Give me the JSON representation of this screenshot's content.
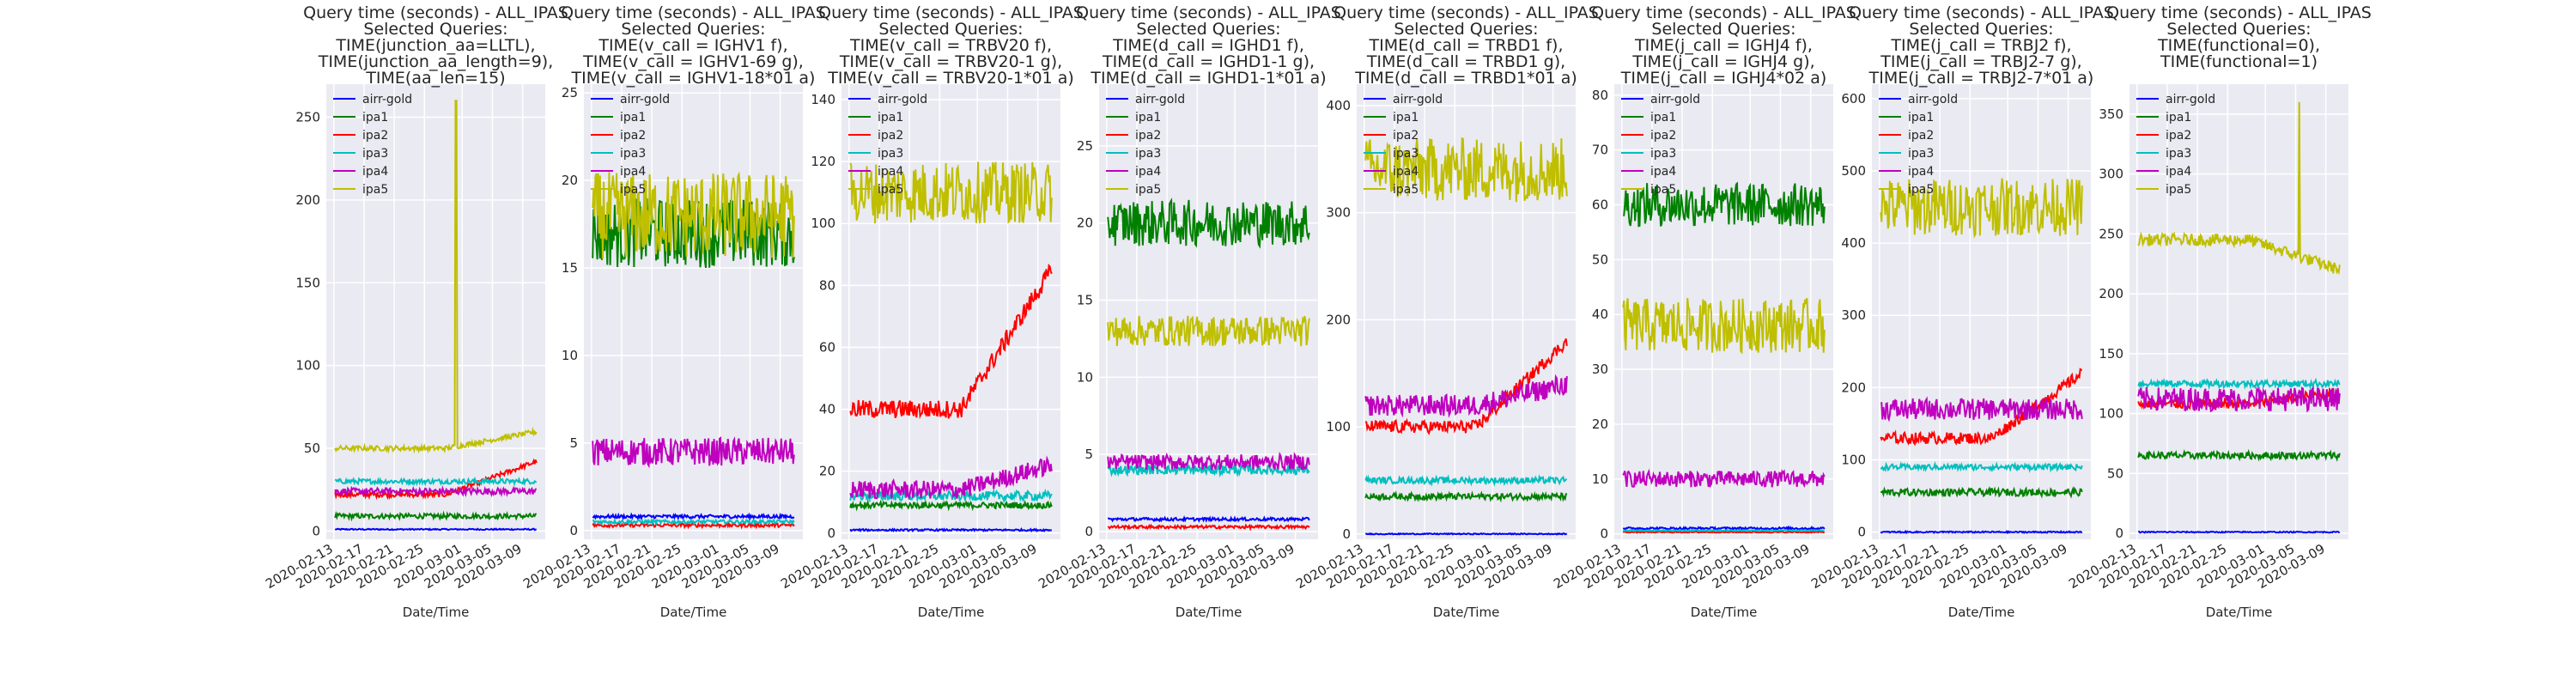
{
  "figure": {
    "xlabel": "Date/Time"
  },
  "chart_data": [
    {
      "type": "line",
      "title": [
        "Query time (seconds) - ALL_IPAS",
        "Selected Queries:",
        "TIME(junction_aa=LLTL),",
        "TIME(junction_aa_length=9),",
        "TIME(aa_len=15)"
      ],
      "xlabel": "Date/Time",
      "xlim": [
        "2020-02-12",
        "2020-03-12"
      ],
      "ylim": [
        -5,
        270
      ],
      "yticks": [
        0,
        50,
        100,
        150,
        200,
        250
      ],
      "series": [
        {
          "name": "airr-gold",
          "color": "#0000ff",
          "base": 1,
          "noise": 0.4
        },
        {
          "name": "ipa1",
          "color": "#008000",
          "base": 9,
          "noise": 1.5
        },
        {
          "name": "ipa2",
          "color": "#ff0000",
          "base": 22,
          "trend": 20,
          "noise": 1.5
        },
        {
          "name": "ipa3",
          "color": "#00bfbf",
          "base": 30,
          "noise": 1.5
        },
        {
          "name": "ipa4",
          "color": "#bf00bf",
          "base": 24,
          "noise": 2
        },
        {
          "name": "ipa5",
          "color": "#bfbf00",
          "base": 50,
          "trend": 10,
          "noise": 1.5,
          "spike": [
            0.6,
            260
          ]
        }
      ]
    },
    {
      "type": "line",
      "title": [
        "Query time (seconds) - ALL_IPAS",
        "Selected Queries:",
        "TIME(v_call = IGHV1 f),",
        "TIME(v_call = IGHV1-69 g),",
        "TIME(v_call = IGHV1-18*01 a)"
      ],
      "xlabel": "Date/Time",
      "xlim": [
        "2020-02-12",
        "2020-03-12"
      ],
      "ylim": [
        -0.5,
        25.5
      ],
      "yticks": [
        0,
        5,
        10,
        15,
        20,
        25
      ],
      "series": [
        {
          "name": "airr-gold",
          "color": "#0000ff",
          "base": 0.8,
          "noise": 0.1
        },
        {
          "name": "ipa1",
          "color": "#008000",
          "base": 17,
          "noise": 2
        },
        {
          "name": "ipa2",
          "color": "#ff0000",
          "base": 0.3,
          "noise": 0.1
        },
        {
          "name": "ipa3",
          "color": "#00bfbf",
          "base": 0.5,
          "noise": 0.1
        },
        {
          "name": "ipa4",
          "color": "#bf00bf",
          "base": 4.5,
          "noise": 0.8
        },
        {
          "name": "ipa5",
          "color": "#bfbf00",
          "base": 18,
          "noise": 2.5
        }
      ]
    },
    {
      "type": "line",
      "title": [
        "Query time (seconds) - ALL_IPAS",
        "Selected Queries:",
        "TIME(v_call = TRBV20 f),",
        "TIME(v_call = TRBV20-1 g),",
        "TIME(v_call = TRBV20-1*01  a)"
      ],
      "xlabel": "Date/Time",
      "xlim": [
        "2020-02-12",
        "2020-03-12"
      ],
      "ylim": [
        -2,
        145
      ],
      "yticks": [
        0,
        20,
        40,
        60,
        80,
        100,
        120,
        140
      ],
      "series": [
        {
          "name": "airr-gold",
          "color": "#0000ff",
          "base": 1,
          "noise": 0.3
        },
        {
          "name": "ipa1",
          "color": "#008000",
          "base": 9,
          "noise": 1
        },
        {
          "name": "ipa2",
          "color": "#ff0000",
          "base": 40,
          "trend": 45,
          "noise": 3
        },
        {
          "name": "ipa3",
          "color": "#00bfbf",
          "base": 12,
          "noise": 1.5
        },
        {
          "name": "ipa4",
          "color": "#bf00bf",
          "base": 14,
          "trend": 8,
          "noise": 3
        },
        {
          "name": "ipa5",
          "color": "#bfbf00",
          "base": 110,
          "noise": 10
        }
      ]
    },
    {
      "type": "line",
      "title": [
        "Query time (seconds) - ALL_IPAS",
        "Selected Queries:",
        "TIME(d_call = IGHD1 f),",
        "TIME(d_call = IGHD1-1 g),",
        "TIME(d_call = IGHD1-1*01 a)"
      ],
      "xlabel": "Date/Time",
      "xlim": [
        "2020-02-12",
        "2020-03-12"
      ],
      "ylim": [
        -0.5,
        29
      ],
      "yticks": [
        0,
        5,
        10,
        15,
        20,
        25
      ],
      "series": [
        {
          "name": "airr-gold",
          "color": "#0000ff",
          "base": 0.8,
          "noise": 0.1
        },
        {
          "name": "ipa1",
          "color": "#008000",
          "base": 20,
          "noise": 1.5
        },
        {
          "name": "ipa2",
          "color": "#ff0000",
          "base": 0.3,
          "noise": 0.1
        },
        {
          "name": "ipa3",
          "color": "#00bfbf",
          "base": 4,
          "noise": 0.3
        },
        {
          "name": "ipa4",
          "color": "#bf00bf",
          "base": 4.5,
          "noise": 0.5
        },
        {
          "name": "ipa5",
          "color": "#bfbf00",
          "base": 13,
          "noise": 1
        }
      ]
    },
    {
      "type": "line",
      "title": [
        "Query time (seconds) - ALL_IPAS",
        "Selected Queries:",
        "TIME(d_call = TRBD1 f),",
        "TIME(d_call = TRBD1 g),",
        "TIME(d_call = TRBD1*01 a)"
      ],
      "xlabel": "Date/Time",
      "xlim": [
        "2020-02-12",
        "2020-03-12"
      ],
      "ylim": [
        -5,
        420
      ],
      "yticks": [
        0,
        100,
        200,
        300,
        400
      ],
      "series": [
        {
          "name": "airr-gold",
          "color": "#0000ff",
          "base": 0,
          "noise": 0.5
        },
        {
          "name": "ipa1",
          "color": "#008000",
          "base": 35,
          "noise": 3
        },
        {
          "name": "ipa2",
          "color": "#ff0000",
          "base": 100,
          "trend": 80,
          "noise": 6
        },
        {
          "name": "ipa3",
          "color": "#00bfbf",
          "base": 50,
          "noise": 3
        },
        {
          "name": "ipa4",
          "color": "#bf00bf",
          "base": 120,
          "trend": 20,
          "noise": 10
        },
        {
          "name": "ipa5",
          "color": "#bfbf00",
          "base": 340,
          "noise": 30
        }
      ]
    },
    {
      "type": "line",
      "title": [
        "Query time (seconds) - ALL_IPAS",
        "Selected Queries:",
        "TIME(j_call = IGHJ4 f),",
        "TIME(j_call = IGHJ4 g),",
        "TIME(j_call = IGHJ4*02 a)"
      ],
      "xlabel": "Date/Time",
      "xlim": [
        "2020-02-12",
        "2020-03-12"
      ],
      "ylim": [
        -1,
        82
      ],
      "yticks": [
        0,
        10,
        20,
        30,
        40,
        50,
        60,
        70,
        80
      ],
      "series": [
        {
          "name": "airr-gold",
          "color": "#0000ff",
          "base": 1,
          "noise": 0.2
        },
        {
          "name": "ipa1",
          "color": "#008000",
          "base": 60,
          "noise": 4
        },
        {
          "name": "ipa2",
          "color": "#ff0000",
          "base": 0.3,
          "noise": 0.1
        },
        {
          "name": "ipa3",
          "color": "#00bfbf",
          "base": 0.6,
          "noise": 0.1
        },
        {
          "name": "ipa4",
          "color": "#bf00bf",
          "base": 10,
          "noise": 1.5
        },
        {
          "name": "ipa5",
          "color": "#bfbf00",
          "base": 38,
          "noise": 5
        }
      ]
    },
    {
      "type": "line",
      "title": [
        "Query time (seconds) - ALL_IPAS",
        "Selected Queries:",
        "TIME(j_call = TRBJ2 f),",
        "TIME(j_call = TRBJ2-7 g),",
        "TIME(j_call = TRBJ2-7*01 a)"
      ],
      "xlabel": "Date/Time",
      "xlim": [
        "2020-02-12",
        "2020-03-12"
      ],
      "ylim": [
        -10,
        620
      ],
      "yticks": [
        0,
        100,
        200,
        300,
        400,
        500,
        600
      ],
      "series": [
        {
          "name": "airr-gold",
          "color": "#0000ff",
          "base": 0,
          "noise": 1
        },
        {
          "name": "ipa1",
          "color": "#008000",
          "base": 55,
          "noise": 5
        },
        {
          "name": "ipa2",
          "color": "#ff0000",
          "base": 130,
          "trend": 90,
          "noise": 8
        },
        {
          "name": "ipa3",
          "color": "#00bfbf",
          "base": 90,
          "noise": 4
        },
        {
          "name": "ipa4",
          "color": "#bf00bf",
          "base": 170,
          "noise": 15
        },
        {
          "name": "ipa5",
          "color": "#bfbf00",
          "base": 450,
          "noise": 40
        }
      ]
    },
    {
      "type": "line",
      "title": [
        "Query time (seconds) - ALL_IPAS",
        "Selected Queries:",
        "TIME(functional=0),",
        "TIME(functional=1)"
      ],
      "xlabel": "Date/Time",
      "xlim": [
        "2020-02-12",
        "2020-03-12"
      ],
      "ylim": [
        -5,
        375
      ],
      "yticks": [
        0,
        50,
        100,
        150,
        200,
        250,
        300,
        350
      ],
      "series": [
        {
          "name": "airr-gold",
          "color": "#0000ff",
          "base": 1,
          "noise": 0.5
        },
        {
          "name": "ipa1",
          "color": "#008000",
          "base": 65,
          "noise": 3
        },
        {
          "name": "ipa2",
          "color": "#ff0000",
          "base": 108,
          "trend": 10,
          "noise": 4
        },
        {
          "name": "ipa3",
          "color": "#00bfbf",
          "base": 125,
          "noise": 3
        },
        {
          "name": "ipa4",
          "color": "#bf00bf",
          "base": 112,
          "noise": 10
        },
        {
          "name": "ipa5",
          "color": "#bfbf00",
          "base": 245,
          "trend": -25,
          "noise": 5,
          "spike": [
            0.8,
            360
          ]
        }
      ]
    }
  ],
  "xticks": [
    "2020-02-13",
    "2020-02-17",
    "2020-02-21",
    "2020-02-25",
    "2020-03-01",
    "2020-03-05",
    "2020-03-09"
  ]
}
